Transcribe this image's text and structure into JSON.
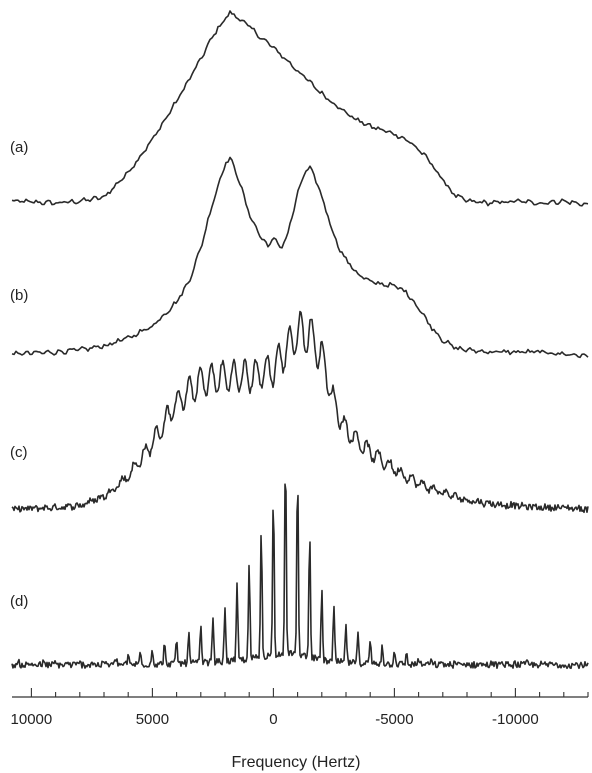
{
  "chart_data": {
    "type": "line",
    "title": "",
    "xlabel": "Frequency (Hertz)",
    "ylabel": "",
    "x_reversed": true,
    "xlim": [
      10800,
      -13000
    ],
    "x_ticks": [
      10000,
      5000,
      0,
      -5000,
      -10000
    ],
    "x_tick_labels": [
      "10000",
      "5000",
      "0",
      "-5000",
      "-10000"
    ],
    "minor_tick_step": 1000,
    "grid": false,
    "legend": "none",
    "series": [
      {
        "name": "(a)",
        "shape": "broad",
        "points": [
          [
            10800,
            0.02
          ],
          [
            9000,
            0.01
          ],
          [
            8000,
            0.02
          ],
          [
            7000,
            0.04
          ],
          [
            6000,
            0.17
          ],
          [
            5000,
            0.34
          ],
          [
            4000,
            0.54
          ],
          [
            3000,
            0.76
          ],
          [
            2500,
            0.88
          ],
          [
            2000,
            0.97
          ],
          [
            1800,
            1.0
          ],
          [
            1500,
            0.98
          ],
          [
            1000,
            0.93
          ],
          [
            500,
            0.87
          ],
          [
            0,
            0.82
          ],
          [
            -500,
            0.76
          ],
          [
            -1000,
            0.7
          ],
          [
            -1500,
            0.64
          ],
          [
            -2000,
            0.58
          ],
          [
            -2500,
            0.53
          ],
          [
            -3000,
            0.48
          ],
          [
            -3500,
            0.44
          ],
          [
            -4000,
            0.41
          ],
          [
            -4500,
            0.39
          ],
          [
            -5000,
            0.37
          ],
          [
            -5500,
            0.34
          ],
          [
            -6000,
            0.29
          ],
          [
            -6500,
            0.22
          ],
          [
            -7000,
            0.13
          ],
          [
            -7500,
            0.05
          ],
          [
            -8000,
            0.02
          ],
          [
            -9000,
            0.01
          ],
          [
            -10000,
            0.02
          ],
          [
            -11000,
            0.01
          ],
          [
            -12000,
            0.02
          ],
          [
            -13000,
            0.0
          ]
        ]
      },
      {
        "name": "(b)",
        "shape": "double",
        "points": [
          [
            10800,
            0.02
          ],
          [
            9000,
            0.03
          ],
          [
            8000,
            0.04
          ],
          [
            7000,
            0.06
          ],
          [
            6000,
            0.1
          ],
          [
            5000,
            0.16
          ],
          [
            4000,
            0.28
          ],
          [
            3500,
            0.38
          ],
          [
            3000,
            0.55
          ],
          [
            2500,
            0.78
          ],
          [
            2000,
            0.97
          ],
          [
            1800,
            1.0
          ],
          [
            1500,
            0.92
          ],
          [
            1000,
            0.72
          ],
          [
            500,
            0.6
          ],
          [
            200,
            0.56
          ],
          [
            0,
            0.6
          ],
          [
            -300,
            0.55
          ],
          [
            -600,
            0.62
          ],
          [
            -1000,
            0.82
          ],
          [
            -1300,
            0.93
          ],
          [
            -1500,
            0.95
          ],
          [
            -1800,
            0.88
          ],
          [
            -2200,
            0.73
          ],
          [
            -2600,
            0.58
          ],
          [
            -3000,
            0.49
          ],
          [
            -3500,
            0.42
          ],
          [
            -4000,
            0.38
          ],
          [
            -4500,
            0.37
          ],
          [
            -5000,
            0.36
          ],
          [
            -5500,
            0.33
          ],
          [
            -6000,
            0.25
          ],
          [
            -6500,
            0.16
          ],
          [
            -7000,
            0.09
          ],
          [
            -7500,
            0.05
          ],
          [
            -8000,
            0.04
          ],
          [
            -9000,
            0.03
          ],
          [
            -10000,
            0.03
          ],
          [
            -11000,
            0.03
          ],
          [
            -12000,
            0.02
          ],
          [
            -13000,
            0.01
          ]
        ]
      },
      {
        "name": "(c)",
        "shape": "partially-resolved",
        "points": [
          [
            10800,
            0.02
          ],
          [
            9000,
            0.03
          ],
          [
            8000,
            0.04
          ],
          [
            7000,
            0.09
          ],
          [
            6000,
            0.2
          ],
          [
            5000,
            0.38
          ],
          [
            4000,
            0.6
          ],
          [
            3000,
            0.71
          ],
          [
            2000,
            0.74
          ],
          [
            1000,
            0.74
          ],
          [
            0,
            0.78
          ],
          [
            -500,
            0.88
          ],
          [
            -1000,
            0.98
          ],
          [
            -1500,
            0.97
          ],
          [
            -2000,
            0.85
          ],
          [
            -2500,
            0.6
          ],
          [
            -3000,
            0.45
          ],
          [
            -4000,
            0.33
          ],
          [
            -5000,
            0.24
          ],
          [
            -6000,
            0.16
          ],
          [
            -7000,
            0.11
          ],
          [
            -8000,
            0.07
          ],
          [
            -9000,
            0.05
          ],
          [
            -10000,
            0.04
          ],
          [
            -11000,
            0.03
          ],
          [
            -12000,
            0.03
          ],
          [
            -13000,
            0.02
          ]
        ]
      },
      {
        "name": "(d)",
        "shape": "resolved-sidebands",
        "points": [
          [
            10800,
            0.01
          ],
          [
            8000,
            0.01
          ],
          [
            7000,
            0.02
          ],
          [
            6000,
            0.04
          ],
          [
            5000,
            0.07
          ],
          [
            4000,
            0.11
          ],
          [
            3000,
            0.17
          ],
          [
            2000,
            0.26
          ],
          [
            1000,
            0.44
          ],
          [
            0,
            0.78
          ],
          [
            -500,
            0.95
          ],
          [
            -1000,
            0.85
          ],
          [
            -1500,
            0.6
          ],
          [
            -2000,
            0.33
          ],
          [
            -3000,
            0.18
          ],
          [
            -4000,
            0.11
          ],
          [
            -5000,
            0.07
          ],
          [
            -6000,
            0.03
          ],
          [
            -7000,
            0.01
          ],
          [
            -9000,
            0.01
          ],
          [
            -11000,
            0.01
          ],
          [
            -13000,
            0.0
          ]
        ]
      }
    ]
  }
}
